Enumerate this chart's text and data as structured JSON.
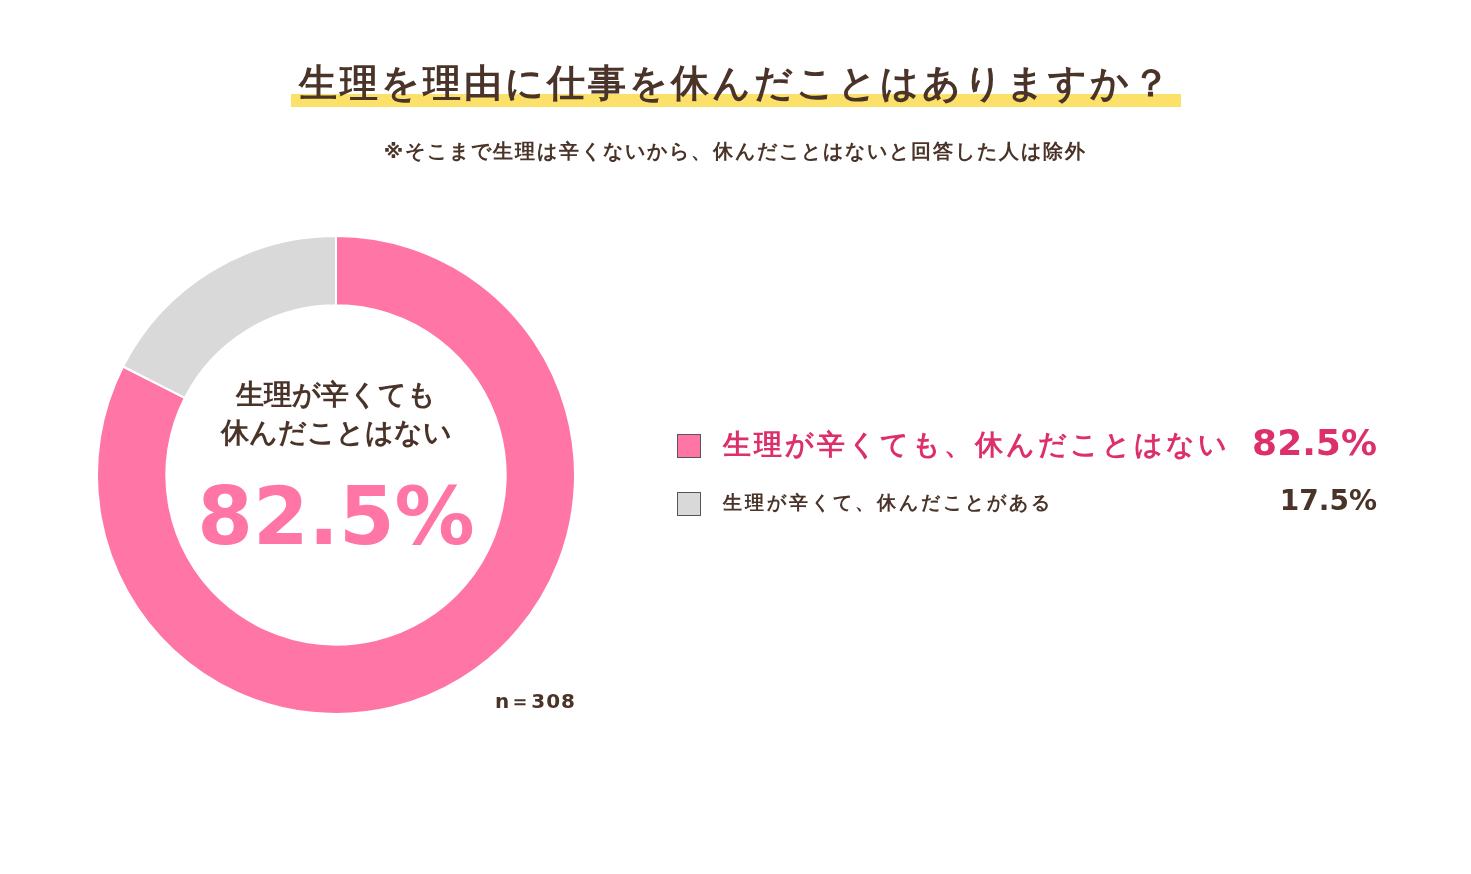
{
  "chart_data": {
    "type": "donut",
    "title": "生理を理由に仕事を休んだことはありますか？",
    "subtitle": "※そこまで生理は辛くないから、休んだことはないと回答した人は除外",
    "categories": [
      "生理が辛くても、休んだことはない",
      "生理が辛くて、休んだことがある"
    ],
    "values": [
      82.5,
      17.5
    ],
    "colors": [
      "#ff75a6",
      "#d9d9d9"
    ],
    "value_labels": [
      "82.5%",
      "17.5%"
    ],
    "legend": "right",
    "annotations": [
      "生理が辛くても",
      "休んだことはない",
      "n＝308"
    ]
  }
}
